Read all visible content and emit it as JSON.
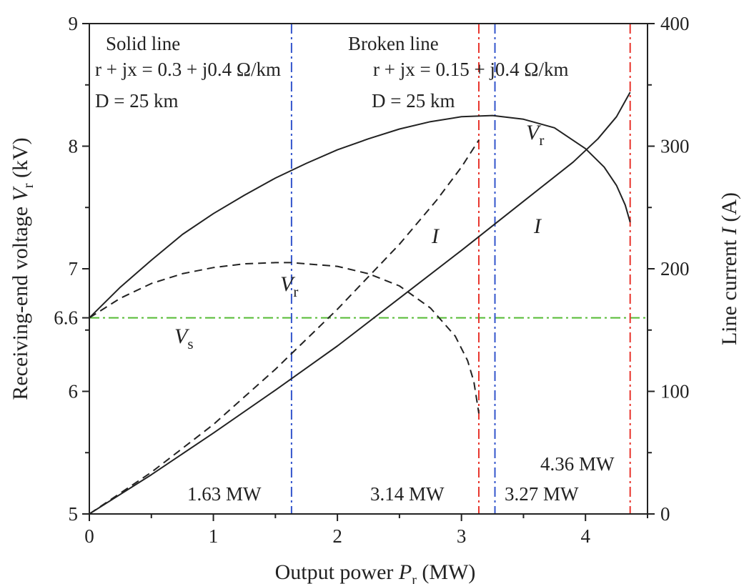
{
  "chart_data": {
    "type": "line",
    "xlabel": {
      "pre": "Output power ",
      "var": "P",
      "sub": "r",
      "post": " (MW)"
    },
    "ylabel_left": {
      "pre": "Receiving-end voltage ",
      "var": "V",
      "sub": "r",
      "post": " (kV)"
    },
    "ylabel_right": {
      "pre": "Line current ",
      "var": "I",
      "post": "  (A)"
    },
    "xlim": [
      0,
      4.5
    ],
    "ylim_left": [
      5,
      9
    ],
    "ylim_right": [
      0,
      400
    ],
    "x_ticks": [
      "0",
      "1",
      "2",
      "3",
      "4"
    ],
    "y_left_ticks": [
      {
        "value": 5,
        "label": "5"
      },
      {
        "value": 6,
        "label": "6"
      },
      {
        "value": 6.6,
        "label": "6.6"
      },
      {
        "value": 7,
        "label": "7"
      },
      {
        "value": 8,
        "label": "8"
      },
      {
        "value": 9,
        "label": "9"
      }
    ],
    "y_right_ticks": [
      "0",
      "100",
      "200",
      "300",
      "400"
    ],
    "grid": false,
    "colors": {
      "axis": "#222222",
      "curves": "#222222",
      "blue": "#3355cc",
      "red": "#e8342c",
      "green": "#55bb33"
    },
    "series": [
      {
        "id": "vr-solid",
        "axis": "left",
        "style": "solid",
        "x": [
          0,
          0.25,
          0.5,
          0.75,
          1.0,
          1.25,
          1.5,
          1.75,
          2.0,
          2.25,
          2.5,
          2.75,
          3.0,
          3.25,
          3.5,
          3.75,
          4.0,
          4.15,
          4.25,
          4.32,
          4.36
        ],
        "y": [
          6.6,
          6.85,
          7.07,
          7.28,
          7.45,
          7.6,
          7.74,
          7.86,
          7.97,
          8.06,
          8.14,
          8.2,
          8.24,
          8.25,
          8.22,
          8.15,
          7.98,
          7.83,
          7.68,
          7.52,
          7.38
        ]
      },
      {
        "id": "vr-broken",
        "axis": "left",
        "style": "dashed",
        "x": [
          0,
          0.25,
          0.5,
          0.75,
          1.0,
          1.25,
          1.5,
          1.63,
          1.75,
          2.0,
          2.25,
          2.5,
          2.75,
          2.95,
          3.05,
          3.1,
          3.14
        ],
        "y": [
          6.6,
          6.76,
          6.88,
          6.96,
          7.01,
          7.04,
          7.05,
          7.05,
          7.04,
          7.02,
          6.96,
          6.86,
          6.68,
          6.45,
          6.25,
          6.08,
          5.82
        ]
      },
      {
        "id": "i-solid",
        "axis": "right",
        "style": "solid",
        "x": [
          0,
          0.5,
          1.0,
          1.5,
          2.0,
          2.5,
          3.0,
          3.5,
          3.9,
          4.1,
          4.25,
          4.36
        ],
        "y": [
          0,
          32,
          66,
          101,
          137,
          176,
          215,
          255,
          287,
          306,
          324,
          344
        ]
      },
      {
        "id": "i-broken",
        "axis": "right",
        "style": "dashed",
        "x": [
          0,
          0.5,
          1.0,
          1.5,
          2.0,
          2.5,
          2.8,
          3.0,
          3.14
        ],
        "y": [
          0,
          34,
          73,
          118,
          167,
          220,
          256,
          283,
          305
        ]
      }
    ],
    "reference_lines": [
      {
        "id": "vs-line",
        "orientation": "horizontal",
        "axis": "left",
        "value": 6.6,
        "color": "green"
      },
      {
        "id": "solid-vmax-line",
        "orientation": "vertical",
        "value": 1.63,
        "color": "blue"
      },
      {
        "id": "broken-vmax-line",
        "orientation": "vertical",
        "value": 3.27,
        "color": "blue"
      },
      {
        "id": "broken-limit-line",
        "orientation": "vertical",
        "value": 3.14,
        "color": "red"
      },
      {
        "id": "solid-limit-line",
        "orientation": "vertical",
        "value": 4.36,
        "color": "red"
      }
    ],
    "annotations": {
      "solid_heading": "Solid line",
      "broken_heading": "Broken line",
      "solid_impedance": "r + jx = 0.3 + j0.4 Ω/km",
      "broken_impedance": "r + jx = 0.15 + j0.4 Ω/km",
      "distance_solid": "D = 25 km",
      "distance_broken": "D = 25 km",
      "p163": "1.63 MW",
      "p314": "3.14 MW",
      "p327": "3.27 MW",
      "p436": "4.36 MW"
    },
    "curve_labels": {
      "vr_solid": {
        "var": "V",
        "sub": "r"
      },
      "vr_broken": {
        "var": "V",
        "sub": "r"
      },
      "vs": {
        "var": "V",
        "sub": "s"
      },
      "i_solid": {
        "var": "I"
      },
      "i_broken": {
        "var": "I"
      }
    }
  }
}
